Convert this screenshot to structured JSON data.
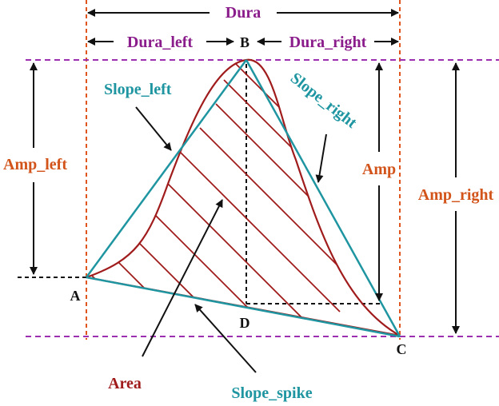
{
  "labels": {
    "dura": "Dura",
    "dura_left": "Dura_left",
    "dura_right": "Dura_right",
    "slope_left": "Slope_left",
    "slope_right": "Slope_right",
    "slope_spike": "Slope_spike",
    "amp_left": "Amp_left",
    "amp": "Amp",
    "amp_right": "Amp_right",
    "area": "Area"
  },
  "points": {
    "a": "A",
    "b": "B",
    "c": "C",
    "d": "D"
  },
  "colors": {
    "purple_text": "#8B1C8B",
    "orange_text": "#D2541A",
    "teal": "#1E95A0",
    "dark_red": "#A01C1C",
    "purple_dash": "#9B2FB0",
    "orange_dash": "#E0551E",
    "black": "#111111"
  }
}
